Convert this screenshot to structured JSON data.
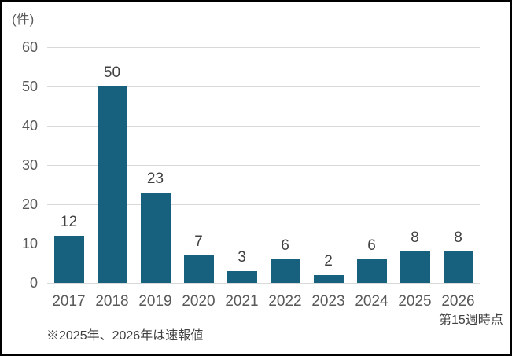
{
  "chart_data": {
    "type": "bar",
    "unit_label": "(件)",
    "categories": [
      "2017",
      "2018",
      "2019",
      "2020",
      "2021",
      "2022",
      "2023",
      "2024",
      "2025",
      "2026"
    ],
    "values": [
      12,
      50,
      23,
      7,
      3,
      6,
      2,
      6,
      8,
      8
    ],
    "ylim": [
      0,
      60
    ],
    "yticks": [
      0,
      10,
      20,
      30,
      40,
      50,
      60
    ],
    "grid": "horizontal",
    "legend": "none",
    "bar_color": "#17617F",
    "gridline_color": "#D9D9D9",
    "tick_label_color": "#595959",
    "data_label_color": "#404040",
    "x_axis_note": "第15週時点",
    "footnote": "※2025年、2026年は速報値"
  }
}
